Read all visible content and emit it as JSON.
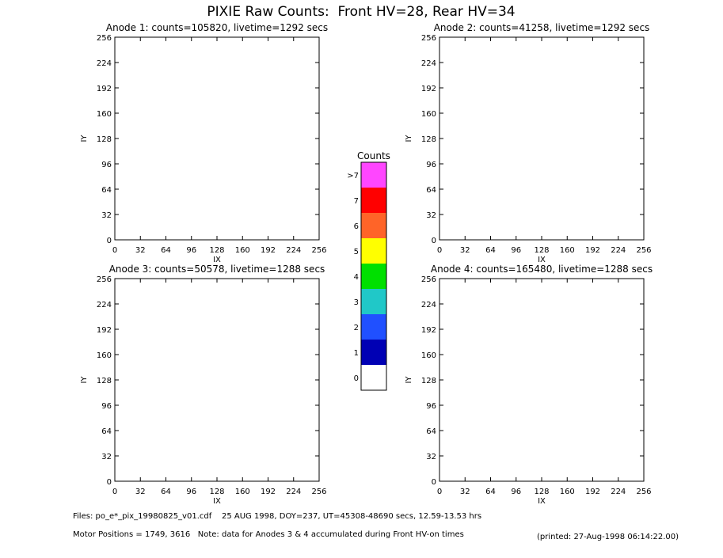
{
  "title": "PIXIE Raw Counts:  Front HV=28, Rear HV=34",
  "chart_data": [
    {
      "type": "heatmap",
      "title": "Anode 1: counts=105820, livetime=1292 secs",
      "xlabel": "IX",
      "ylabel": "IY",
      "xlim": [
        0,
        256
      ],
      "ylim": [
        0,
        256
      ],
      "xticks": [
        0,
        32,
        64,
        96,
        128,
        160,
        192,
        224,
        256
      ],
      "yticks": [
        0,
        32,
        64,
        96,
        128,
        160,
        192,
        224,
        256
      ]
    },
    {
      "type": "heatmap",
      "title": "Anode 2: counts=41258, livetime=1292 secs",
      "xlabel": "IX",
      "ylabel": "IY",
      "xlim": [
        0,
        256
      ],
      "ylim": [
        0,
        256
      ],
      "xticks": [
        0,
        32,
        64,
        96,
        128,
        160,
        192,
        224,
        256
      ],
      "yticks": [
        0,
        32,
        64,
        96,
        128,
        160,
        192,
        224,
        256
      ]
    },
    {
      "type": "heatmap",
      "title": "Anode 3: counts=50578, livetime=1288 secs",
      "xlabel": "IX",
      "ylabel": "IY",
      "xlim": [
        0,
        256
      ],
      "ylim": [
        0,
        256
      ],
      "xticks": [
        0,
        32,
        64,
        96,
        128,
        160,
        192,
        224,
        256
      ],
      "yticks": [
        0,
        32,
        64,
        96,
        128,
        160,
        192,
        224,
        256
      ]
    },
    {
      "type": "heatmap",
      "title": "Anode 4: counts=165480, livetime=1288 secs",
      "xlabel": "IX",
      "ylabel": "IY",
      "xlim": [
        0,
        256
      ],
      "ylim": [
        0,
        256
      ],
      "xticks": [
        0,
        32,
        64,
        96,
        128,
        160,
        192,
        224,
        256
      ],
      "yticks": [
        0,
        32,
        64,
        96,
        128,
        160,
        192,
        224,
        256
      ]
    }
  ],
  "colorbar": {
    "title": "Counts",
    "labels": [
      "0",
      "1",
      "2",
      "3",
      "4",
      "5",
      "6",
      "7",
      ">7"
    ],
    "colors": [
      "#ffffff",
      "#0000b4",
      "#2050ff",
      "#20c8c8",
      "#00e000",
      "#ffff00",
      "#ff6428",
      "#ff0000",
      "#ff46ff"
    ]
  },
  "footer": {
    "files": "Files: po_e*_pix_19980825_v01.cdf    25 AUG 1998, DOY=237, UT=45308-48690 secs, 12.59-13.53 hrs",
    "motor": "Motor Positions = 1749, 3616   Note: data for Anodes 3 & 4 accumulated during Front HV-on times",
    "printed": "(printed: 27-Aug-1998 06:14:22.00)"
  }
}
